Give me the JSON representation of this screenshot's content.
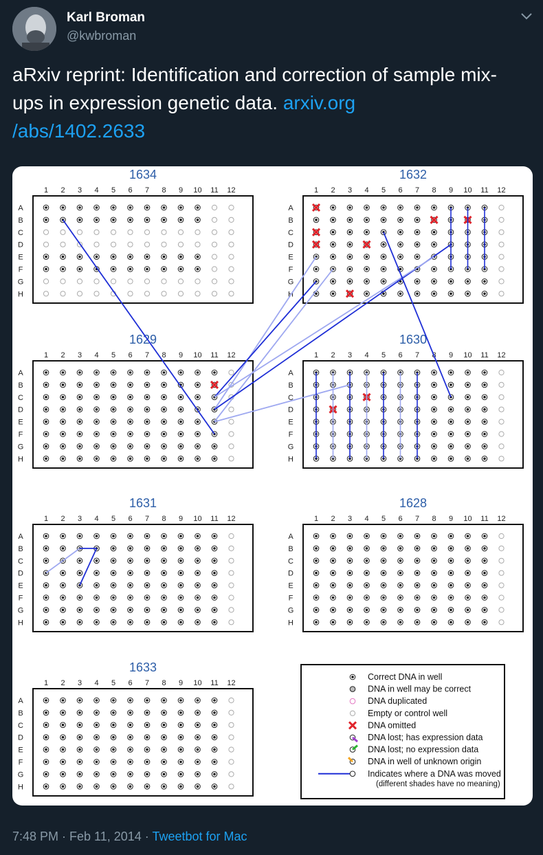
{
  "author": {
    "name": "Karl Broman",
    "handle": "@kwbroman"
  },
  "tweet": {
    "text_prefix": "aRxiv reprint: Identification and correction of sample mix-ups in expression genetic data. ",
    "link_line1": "arxiv.org",
    "link_line2": "/abs/1402.2633"
  },
  "footer": {
    "timestamp": "7:48 PM · Feb 11, 2014",
    "separator": " · ",
    "client": "Tweetbot for Mac"
  },
  "figure": {
    "column_labels": [
      "1",
      "2",
      "3",
      "4",
      "5",
      "6",
      "7",
      "8",
      "9",
      "10",
      "11",
      "12"
    ],
    "row_labels": [
      "A",
      "B",
      "C",
      "D",
      "E",
      "F",
      "G",
      "H"
    ],
    "plates": [
      {
        "title": "1634"
      },
      {
        "title": "1632"
      },
      {
        "title": "1629"
      },
      {
        "title": "1630"
      },
      {
        "title": "1631"
      },
      {
        "title": "1628"
      },
      {
        "title": "1633"
      }
    ],
    "legend": [
      {
        "symbol": "correct",
        "label": "Correct DNA in well"
      },
      {
        "symbol": "maybe",
        "label": "DNA in well may be correct"
      },
      {
        "symbol": "duplicated",
        "label": "DNA duplicated"
      },
      {
        "symbol": "empty",
        "label": "Empty or control well"
      },
      {
        "symbol": "omitted",
        "label": "DNA omitted"
      },
      {
        "symbol": "lost-expr",
        "label": "DNA lost; has expression data"
      },
      {
        "symbol": "lost-noexpr",
        "label": "DNA lost; no expression data"
      },
      {
        "symbol": "unknown",
        "label": "DNA in well of unknown origin"
      },
      {
        "symbol": "arrow",
        "label": "Indicates where a DNA was moved"
      }
    ],
    "legend_note": "(different shades have no meaning)",
    "colors": {
      "title": "#2d5ea8",
      "arrow": "#1f2fd6",
      "arrow_light": "#9ea8f0",
      "omitted": "#e0242b",
      "duplicated": "#e377c2",
      "lost_expr": "#a13ed1",
      "lost_noexpr": "#2bb431",
      "unknown": "#f5a623"
    }
  }
}
